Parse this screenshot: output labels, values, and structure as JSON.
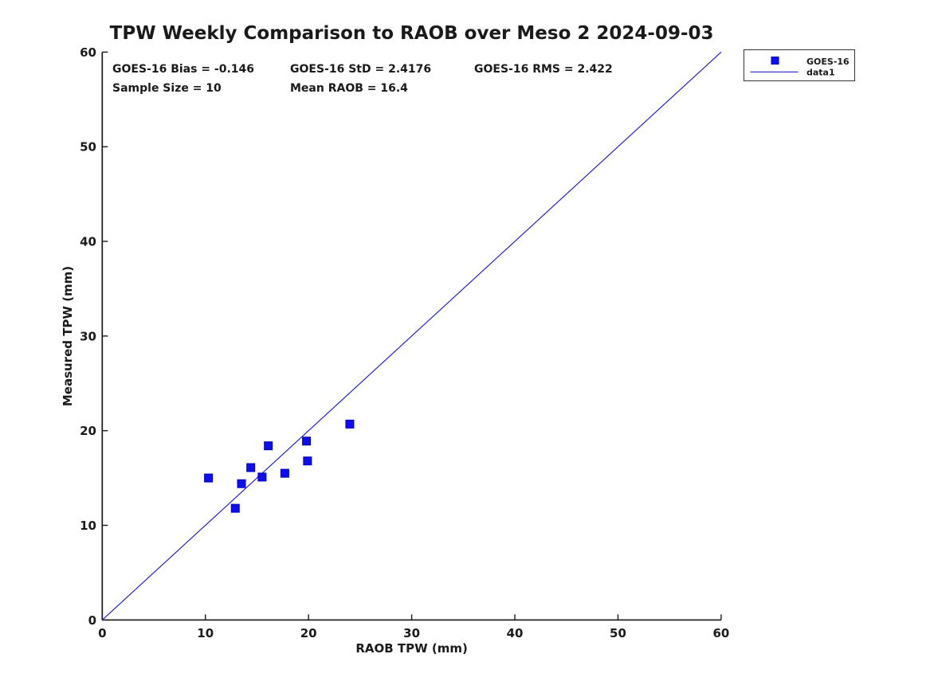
{
  "stats": {
    "row1": [
      "GOES-16 Bias = -0.146",
      "GOES-16 StD = 2.4176",
      "GOES-16 RMS = 2.422"
    ],
    "row2": [
      "Sample Size = 10",
      "Mean RAOB = 16.4"
    ]
  },
  "legend": {
    "entries": [
      {
        "label": "GOES-16",
        "symbol": "square-marker"
      },
      {
        "label": "data1",
        "symbol": "line"
      }
    ]
  },
  "chart_data": {
    "type": "scatter",
    "title": "TPW Weekly Comparison to RAOB over Meso 2 2024-09-03",
    "xlabel": "RAOB TPW (mm)",
    "ylabel": "Measured TPW (mm)",
    "xlim": [
      0,
      60
    ],
    "ylim": [
      0,
      60
    ],
    "xticks": [
      0,
      10,
      20,
      30,
      40,
      50,
      60
    ],
    "yticks": [
      0,
      10,
      20,
      30,
      40,
      50,
      60
    ],
    "grid": false,
    "legend_position": "outside-top-right",
    "axis_color": "#1a1a1a",
    "series": [
      {
        "name": "GOES-16",
        "type": "scatter",
        "marker": "square",
        "color": "#0d0df0",
        "edge_color": "#0000c8",
        "points": [
          [
            10.3,
            15.0
          ],
          [
            12.9,
            11.8
          ],
          [
            13.5,
            14.4
          ],
          [
            14.4,
            16.1
          ],
          [
            15.5,
            15.1
          ],
          [
            16.1,
            18.4
          ],
          [
            17.7,
            15.5
          ],
          [
            19.8,
            18.9
          ],
          [
            19.9,
            16.8
          ],
          [
            24.0,
            20.7
          ]
        ]
      },
      {
        "name": "data1",
        "type": "line",
        "color": "#2424c8",
        "points": [
          [
            0,
            0
          ],
          [
            60,
            60
          ]
        ]
      }
    ]
  }
}
